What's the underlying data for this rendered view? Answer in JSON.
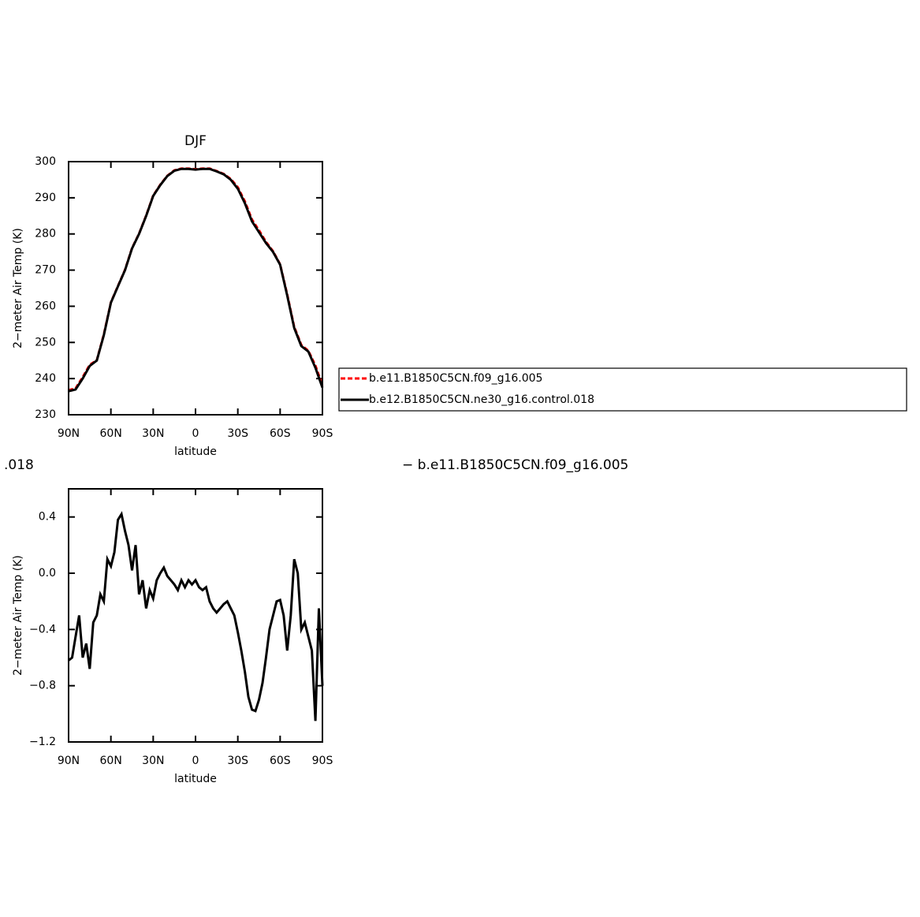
{
  "chart_data": [
    {
      "type": "line",
      "title": "DJF",
      "xlabel": "latitude",
      "ylabel": "2−meter Air Temp (K)",
      "x": [
        90,
        85,
        80,
        75,
        70,
        65,
        60,
        55,
        50,
        45,
        40,
        35,
        30,
        25,
        20,
        15,
        10,
        5,
        0,
        -5,
        -10,
        -15,
        -20,
        -25,
        -30,
        -35,
        -40,
        -45,
        -50,
        -55,
        -60,
        -65,
        -70,
        -75,
        -80,
        -85,
        -90
      ],
      "series": [
        {
          "name": "b.e11.B1850C5CN.f09_g16.005",
          "color": "#ff0000",
          "dash": true,
          "values": [
            236.8,
            237.3,
            240.4,
            243.8,
            245.1,
            252.2,
            261.1,
            265.6,
            270.1,
            276.1,
            280.1,
            285.1,
            290.6,
            293.6,
            296.1,
            297.6,
            298.1,
            298.1,
            297.9,
            298.1,
            298.1,
            297.4,
            296.6,
            295.2,
            292.9,
            289,
            284,
            281,
            277.8,
            275.2,
            271.6,
            263.3,
            254.3,
            249.3,
            247.7,
            243.6,
            238.1
          ]
        },
        {
          "name": "b.e12.B1850C5CN.ne30_g16.control.018",
          "color": "#000000",
          "dash": false,
          "values": [
            236.5,
            237,
            240,
            243.5,
            245,
            252,
            261,
            265.5,
            270,
            276,
            280,
            285,
            290.5,
            293.5,
            296,
            297.5,
            298,
            298,
            297.8,
            298,
            298,
            297.3,
            296.5,
            295,
            292.5,
            288.5,
            283.5,
            280.5,
            277.5,
            275,
            271.5,
            263,
            254,
            249,
            247.5,
            243,
            237.5
          ]
        }
      ],
      "xlim": [
        90,
        -90
      ],
      "xticks": [
        {
          "value": 90,
          "label": "90N"
        },
        {
          "value": 60,
          "label": "60N"
        },
        {
          "value": 30,
          "label": "30N"
        },
        0,
        {
          "value": -30,
          "label": "30S"
        },
        {
          "value": -60,
          "label": "60S"
        },
        {
          "value": -90,
          "label": "90S"
        }
      ],
      "ylim": [
        230,
        300
      ],
      "yticks": [
        230,
        240,
        250,
        260,
        270,
        280,
        290,
        300
      ],
      "legend": "right"
    },
    {
      "type": "line",
      "left_string": ".018",
      "right_string": "− b.e11.B1850C5CN.f09_g16.005",
      "xlabel": "latitude",
      "ylabel": "2−meter Air Temp (K)",
      "x": [
        90,
        87.5,
        85,
        82.5,
        80,
        77.5,
        75,
        72.5,
        70,
        67.5,
        65,
        62.5,
        60,
        57.5,
        55,
        52.5,
        50,
        47.5,
        45,
        42.5,
        40,
        37.5,
        35,
        32.5,
        30,
        27.5,
        25,
        22.5,
        20,
        17.5,
        15,
        12.5,
        10,
        7.5,
        5,
        2.5,
        0,
        -2.5,
        -5,
        -7.5,
        -10,
        -12.5,
        -15,
        -17.5,
        -20,
        -22.5,
        -25,
        -27.5,
        -30,
        -32.5,
        -35,
        -37.5,
        -40,
        -42.5,
        -45,
        -47.5,
        -50,
        -52.5,
        -55,
        -57.5,
        -60,
        -62.5,
        -65,
        -67.5,
        -70,
        -72.5,
        -75,
        -77.5,
        -80,
        -82.5,
        -85,
        -87.5,
        -90
      ],
      "series": [
        {
          "name": null,
          "color": "#000000",
          "dash": false,
          "values": [
            -0.62,
            -0.6,
            -0.45,
            -0.3,
            -0.6,
            -0.5,
            -0.68,
            -0.35,
            -0.3,
            -0.15,
            -0.2,
            0.1,
            0.05,
            0.15,
            0.38,
            0.42,
            0.3,
            0.2,
            0.02,
            0.2,
            -0.15,
            -0.05,
            -0.25,
            -0.12,
            -0.18,
            -0.05,
            0.0,
            0.04,
            -0.02,
            -0.05,
            -0.08,
            -0.12,
            -0.05,
            -0.1,
            -0.05,
            -0.08,
            -0.05,
            -0.1,
            -0.12,
            -0.1,
            -0.2,
            -0.25,
            -0.28,
            -0.25,
            -0.22,
            -0.2,
            -0.25,
            -0.3,
            -0.42,
            -0.55,
            -0.7,
            -0.88,
            -0.97,
            -0.98,
            -0.9,
            -0.78,
            -0.6,
            -0.4,
            -0.3,
            -0.2,
            -0.19,
            -0.3,
            -0.55,
            -0.3,
            0.1,
            0.0,
            -0.4,
            -0.35,
            -0.45,
            -0.55,
            -1.05,
            -0.25,
            -0.8
          ]
        }
      ],
      "xlim": [
        90,
        -90
      ],
      "xticks": [
        {
          "value": 90,
          "label": "90N"
        },
        {
          "value": 60,
          "label": "60N"
        },
        {
          "value": 30,
          "label": "30N"
        },
        0,
        {
          "value": -30,
          "label": "30S"
        },
        {
          "value": -60,
          "label": "60S"
        },
        {
          "value": -90,
          "label": "90S"
        }
      ],
      "ylim": [
        -1.2,
        0.6
      ],
      "yticks": [
        {
          "value": -1.2,
          "label": "−1.2"
        },
        {
          "value": -0.8,
          "label": "−0.8"
        },
        {
          "value": -0.4,
          "label": "−0.4"
        },
        {
          "value": 0,
          "label": "0.0"
        },
        0.4
      ]
    }
  ]
}
